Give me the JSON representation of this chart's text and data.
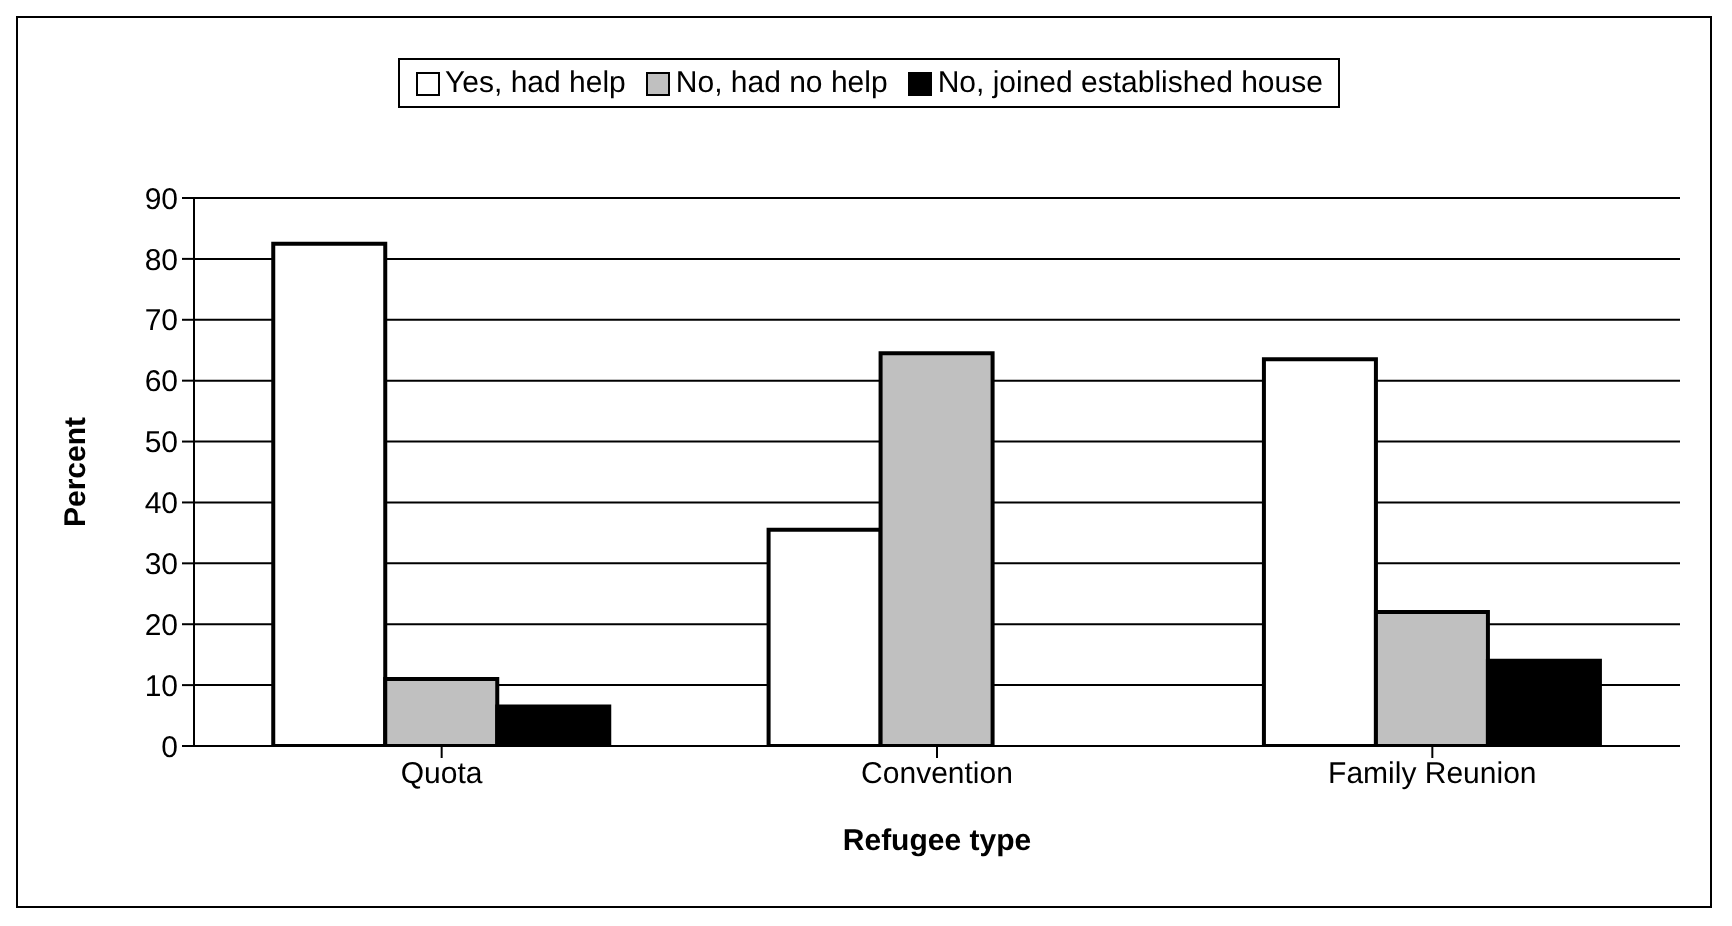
{
  "chart_data": {
    "type": "bar",
    "xlabel": "Refugee type",
    "ylabel": "Percent",
    "categories": [
      "Quota",
      "Convention",
      "Family Reunion"
    ],
    "series": [
      {
        "name": "Yes, had help",
        "color": "#ffffff",
        "values": [
          82.5,
          35.5,
          63.5
        ]
      },
      {
        "name": "No, had no help",
        "color": "#c0c0c0",
        "values": [
          11,
          64.5,
          22
        ]
      },
      {
        "name": "No, joined established house",
        "color": "#000000",
        "values": [
          6.5,
          null,
          14
        ]
      }
    ],
    "ylim": [
      0,
      90
    ],
    "yticks": [
      0,
      10,
      20,
      30,
      40,
      50,
      60,
      70,
      80,
      90
    ],
    "grid": "y",
    "legend": "top"
  }
}
